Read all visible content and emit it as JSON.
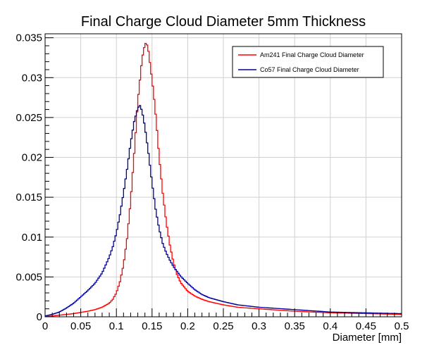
{
  "chart_data": {
    "type": "line",
    "title": "Final Charge Cloud Diameter 5mm Thickness",
    "xlabel": "Diameter [mm]",
    "ylabel": "",
    "xlim": [
      0,
      0.5
    ],
    "ylim": [
      0,
      0.0355
    ],
    "x_ticks": [
      "0",
      "0.05",
      "0.1",
      "0.15",
      "0.2",
      "0.25",
      "0.3",
      "0.35",
      "0.4",
      "0.45",
      "0.5"
    ],
    "y_ticks": [
      "0",
      "0.005",
      "0.01",
      "0.015",
      "0.02",
      "0.025",
      "0.03",
      "0.035"
    ],
    "grid": true,
    "legend_position": "top-right",
    "series": [
      {
        "name": "Am241 Final Charge Cloud Diameter",
        "color": "#ff0000",
        "x": [
          0.0,
          0.02,
          0.04,
          0.06,
          0.07,
          0.08,
          0.09,
          0.095,
          0.1,
          0.105,
          0.11,
          0.115,
          0.12,
          0.125,
          0.13,
          0.135,
          0.138,
          0.141,
          0.143,
          0.145,
          0.148,
          0.152,
          0.156,
          0.16,
          0.165,
          0.17,
          0.175,
          0.18,
          0.185,
          0.19,
          0.2,
          0.21,
          0.22,
          0.23,
          0.25,
          0.27,
          0.3,
          0.35,
          0.4,
          0.45,
          0.5
        ],
        "y": [
          0.0,
          0.0002,
          0.0004,
          0.0007,
          0.0009,
          0.0012,
          0.0017,
          0.0022,
          0.003,
          0.0044,
          0.0065,
          0.0098,
          0.0145,
          0.0205,
          0.027,
          0.0315,
          0.0335,
          0.0343,
          0.0341,
          0.0333,
          0.0312,
          0.0282,
          0.0245,
          0.02,
          0.0155,
          0.0118,
          0.009,
          0.0068,
          0.0053,
          0.0043,
          0.0032,
          0.0026,
          0.0022,
          0.0019,
          0.0015,
          0.0012,
          0.001,
          0.0007,
          0.0005,
          0.0004,
          0.0003
        ]
      },
      {
        "name": "Co57 Final Charge Cloud Diameter",
        "color": "#000099",
        "x": [
          0.0,
          0.01,
          0.02,
          0.03,
          0.04,
          0.05,
          0.06,
          0.07,
          0.08,
          0.09,
          0.095,
          0.1,
          0.105,
          0.11,
          0.115,
          0.12,
          0.125,
          0.13,
          0.133,
          0.136,
          0.14,
          0.145,
          0.15,
          0.155,
          0.16,
          0.165,
          0.17,
          0.175,
          0.18,
          0.19,
          0.2,
          0.21,
          0.22,
          0.23,
          0.25,
          0.27,
          0.3,
          0.35,
          0.4,
          0.45,
          0.5
        ],
        "y": [
          0.0001,
          0.0003,
          0.0006,
          0.0011,
          0.0017,
          0.0025,
          0.0033,
          0.0042,
          0.0055,
          0.0075,
          0.0088,
          0.0105,
          0.0128,
          0.0155,
          0.0185,
          0.0218,
          0.0245,
          0.0262,
          0.0265,
          0.0258,
          0.0238,
          0.0205,
          0.0168,
          0.0135,
          0.011,
          0.0092,
          0.008,
          0.0071,
          0.0063,
          0.0051,
          0.0042,
          0.0034,
          0.0028,
          0.0024,
          0.0019,
          0.0015,
          0.0012,
          0.0009,
          0.0006,
          0.0005,
          0.0004
        ]
      }
    ]
  }
}
